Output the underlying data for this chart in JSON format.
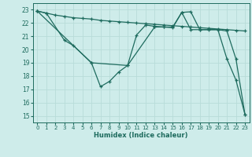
{
  "xlabel": "Humidex (Indice chaleur)",
  "xlim": [
    -0.5,
    23.5
  ],
  "ylim": [
    14.5,
    23.5
  ],
  "yticks": [
    15,
    16,
    17,
    18,
    19,
    20,
    21,
    22,
    23
  ],
  "xticks": [
    0,
    1,
    2,
    3,
    4,
    5,
    6,
    7,
    8,
    9,
    10,
    11,
    12,
    13,
    14,
    15,
    16,
    17,
    18,
    19,
    20,
    21,
    22,
    23
  ],
  "bg_color": "#ceecea",
  "grid_color": "#b8dcd9",
  "line_color": "#1e6b5e",
  "line1_x": [
    0,
    1,
    2,
    3,
    4,
    5,
    6,
    7,
    8,
    9,
    10,
    11,
    12,
    13,
    14,
    15,
    16,
    17,
    18,
    19,
    20,
    21,
    22,
    23
  ],
  "line1_y": [
    22.9,
    22.75,
    22.6,
    22.5,
    22.4,
    22.35,
    22.3,
    22.2,
    22.15,
    22.1,
    22.05,
    22.0,
    21.95,
    21.9,
    21.85,
    21.8,
    21.75,
    21.7,
    21.65,
    21.6,
    21.55,
    21.5,
    21.45,
    21.4
  ],
  "line2_x": [
    0,
    1,
    3,
    4,
    6,
    7,
    8,
    9,
    10,
    11,
    12,
    13,
    14,
    15,
    16,
    17,
    18,
    20,
    21,
    22,
    23
  ],
  "line2_y": [
    22.9,
    22.75,
    20.7,
    20.3,
    19.0,
    17.2,
    17.6,
    18.3,
    18.8,
    21.1,
    21.85,
    21.75,
    21.7,
    21.65,
    22.8,
    22.85,
    21.5,
    21.5,
    21.4,
    19.3,
    15.1
  ],
  "line3_x": [
    0,
    6,
    10,
    13,
    14,
    15,
    16,
    17,
    18,
    19,
    20,
    21,
    22,
    23
  ],
  "line3_y": [
    22.9,
    19.0,
    18.8,
    21.7,
    21.7,
    21.7,
    22.8,
    21.5,
    21.5,
    21.5,
    21.5,
    19.3,
    17.7,
    15.1
  ]
}
